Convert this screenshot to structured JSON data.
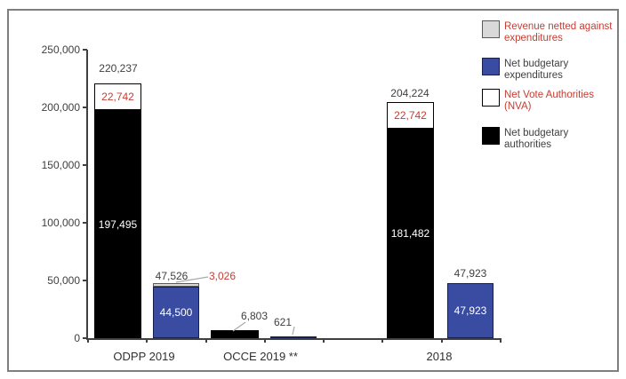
{
  "figure": {
    "kind": "stacked bar chart of budgetary authorities and expenditures",
    "x_axis_categories": [
      "ODPP 2019",
      "OCCE 2019 **",
      "2018"
    ]
  },
  "colors": {
    "black_series": "#000000",
    "blue_series": "#3a4ca1",
    "gray_series": "#d9d9d9",
    "white_series": "#ffffff",
    "red_text": "#c63d33",
    "dark_text": "#3f3f3f",
    "axis": "#404040",
    "frame_border": "#7f7f7f",
    "leader_line": "#a9a9a9"
  },
  "legend": {
    "items": [
      {
        "label": "Revenue netted against expenditures",
        "lines": [
          "Revenue netted against",
          "expenditures"
        ],
        "swatch_color": "#d9d9d9",
        "text_color": "#c63d33"
      },
      {
        "label": "Net budgetary expenditures",
        "lines": [
          "Net budgetary",
          "expenditures"
        ],
        "swatch_color": "#3a4ca1",
        "text_color": "#3f3f3f"
      },
      {
        "label": "Net Vote Authorities (NVA)",
        "lines": [
          "Net Vote Authorities",
          "(NVA)"
        ],
        "swatch_color": "#ffffff",
        "text_color": "#c63d33"
      },
      {
        "label": "Net budgetary authorities",
        "lines": [
          "Net budgetary",
          "authorities"
        ],
        "swatch_color": "#000000",
        "text_color": "#3f3f3f"
      }
    ]
  },
  "chart_data": {
    "type": "bar",
    "stacked": true,
    "grid": false,
    "legend_position": "top-right",
    "categories": [
      "ODPP 2019",
      "OCCE 2019 **",
      "2018"
    ],
    "ylim": [
      0,
      250000
    ],
    "y_ticks": [
      0,
      50000,
      100000,
      150000,
      200000,
      250000
    ],
    "y_tick_labels": [
      "0",
      "50,000",
      "100,000",
      "150,000",
      "200,000",
      "250,000"
    ],
    "series_names": [
      "Net budgetary authorities",
      "Net Vote Authorities (NVA)",
      "Net budgetary expenditures",
      "Revenue netted against expenditures"
    ],
    "bars": [
      {
        "category": "ODPP 2019",
        "stack": "authorities",
        "total": 220237,
        "total_label": "220,237",
        "segments": [
          {
            "series": "Net budgetary authorities",
            "value": 197495,
            "label": "197,495"
          },
          {
            "series": "Net Vote Authorities (NVA)",
            "value": 22742,
            "label": "22,742"
          }
        ]
      },
      {
        "category": "ODPP 2019",
        "stack": "expenditures",
        "total": 47526,
        "total_label": "47,526",
        "segments": [
          {
            "series": "Net budgetary expenditures",
            "value": 44500,
            "label": "44,500"
          },
          {
            "series": "Revenue netted against expenditures",
            "value": 3026,
            "label": "3,026"
          }
        ]
      },
      {
        "category": "OCCE 2019 **",
        "stack": "authorities",
        "total": 6803,
        "total_label": "6,803",
        "segments": [
          {
            "series": "Net budgetary authorities",
            "value": 6803,
            "label": ""
          }
        ]
      },
      {
        "category": "OCCE 2019 **",
        "stack": "expenditures",
        "total": 621,
        "total_label": "621",
        "segments": [
          {
            "series": "Net budgetary expenditures",
            "value": 621,
            "label": ""
          }
        ]
      },
      {
        "category": "2018",
        "stack": "authorities",
        "total": 204224,
        "total_label": "204,224",
        "segments": [
          {
            "series": "Net budgetary authorities",
            "value": 181482,
            "label": "181,482"
          },
          {
            "series": "Net Vote Authorities (NVA)",
            "value": 22742,
            "label": "22,742"
          }
        ]
      },
      {
        "category": "2018",
        "stack": "expenditures",
        "total": 47923,
        "total_label": "47,923",
        "segments": [
          {
            "series": "Net budgetary expenditures",
            "value": 47923,
            "label": "47,923"
          }
        ]
      }
    ]
  }
}
